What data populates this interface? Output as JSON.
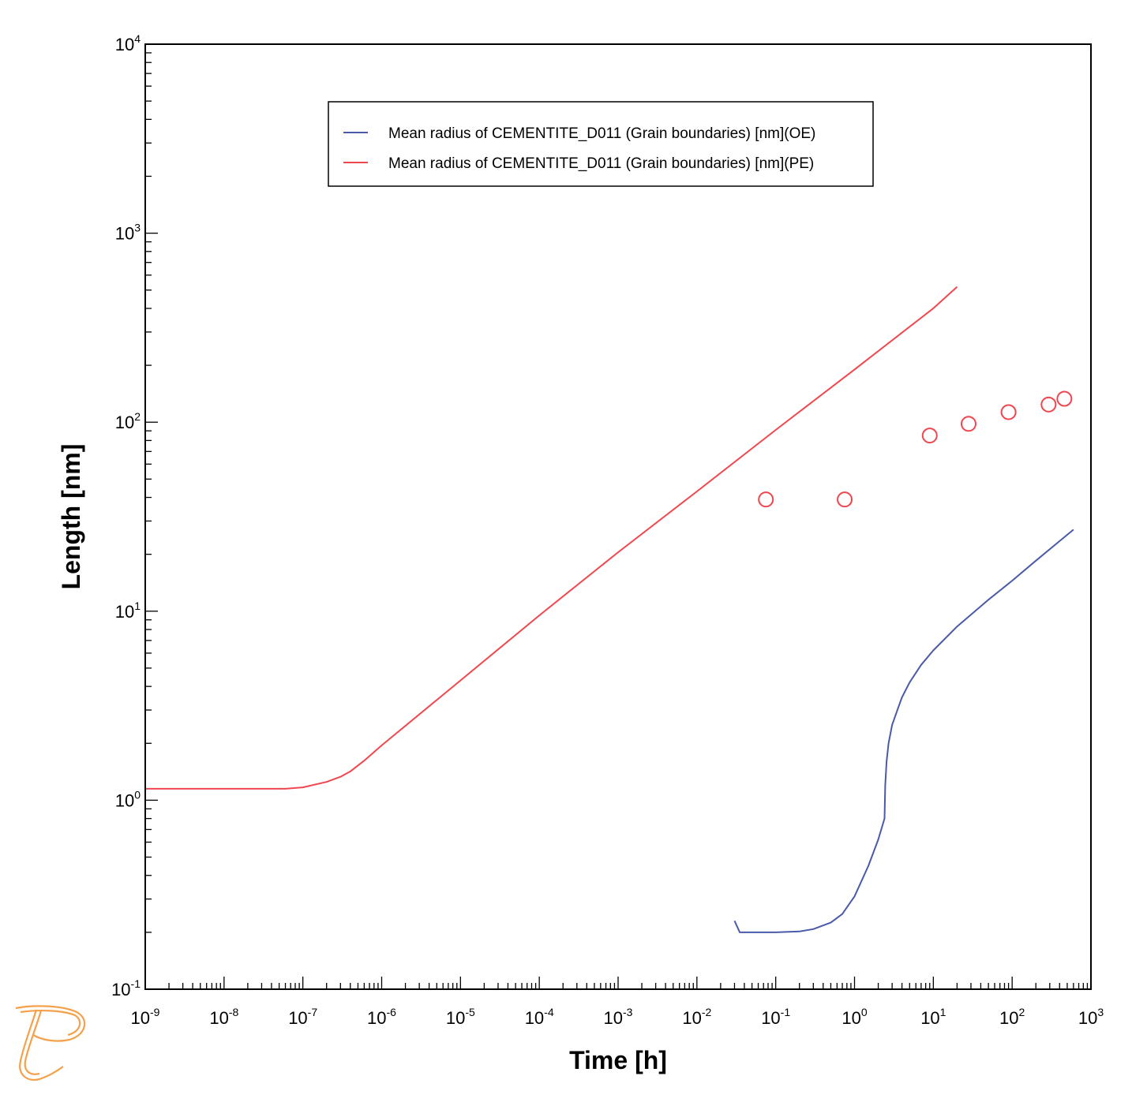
{
  "colors": {
    "oe": "#4a5aa8",
    "pe": "#f0474f",
    "logo": "#f5a04a"
  },
  "logo_icon": "thermo-calc-logo-icon",
  "chart_data": {
    "type": "line",
    "xlabel": "Time [h]",
    "ylabel": "Length [nm]",
    "xscale": "log",
    "yscale": "log",
    "xlim": [
      1e-09,
      1000
    ],
    "ylim": [
      0.1,
      10000
    ],
    "x_ticks": [
      {
        "base": "10",
        "exp": "-9"
      },
      {
        "base": "10",
        "exp": "-8"
      },
      {
        "base": "10",
        "exp": "-7"
      },
      {
        "base": "10",
        "exp": "-6"
      },
      {
        "base": "10",
        "exp": "-5"
      },
      {
        "base": "10",
        "exp": "-4"
      },
      {
        "base": "10",
        "exp": "-3"
      },
      {
        "base": "10",
        "exp": "-2"
      },
      {
        "base": "10",
        "exp": "-1"
      },
      {
        "base": "10",
        "exp": "0"
      },
      {
        "base": "10",
        "exp": "1"
      },
      {
        "base": "10",
        "exp": "2"
      },
      {
        "base": "10",
        "exp": "3"
      }
    ],
    "y_ticks": [
      {
        "base": "10",
        "exp": "-1"
      },
      {
        "base": "10",
        "exp": "0"
      },
      {
        "base": "10",
        "exp": "1"
      },
      {
        "base": "10",
        "exp": "2"
      },
      {
        "base": "10",
        "exp": "3"
      },
      {
        "base": "10",
        "exp": "4"
      }
    ],
    "legend_position": "top-center",
    "grid": false,
    "series": [
      {
        "name": "Mean radius of CEMENTITE_D011 (Grain boundaries) [nm](OE)",
        "color": "#4a5aa8",
        "kind": "line",
        "x": [
          0.03,
          0.035,
          0.05,
          0.1,
          0.2,
          0.3,
          0.5,
          0.7,
          1.0,
          1.5,
          2.0,
          2.4,
          2.45,
          2.55,
          2.7,
          3.0,
          3.5,
          4.0,
          5.0,
          7.0,
          10,
          20,
          50,
          100,
          200,
          400,
          600
        ],
        "y": [
          0.23,
          0.2,
          0.2,
          0.2,
          0.202,
          0.208,
          0.225,
          0.25,
          0.31,
          0.45,
          0.62,
          0.8,
          1.2,
          1.6,
          2.0,
          2.5,
          3.0,
          3.5,
          4.2,
          5.2,
          6.2,
          8.3,
          11.5,
          14.5,
          18.5,
          23.5,
          27
        ]
      },
      {
        "name": "Mean radius of CEMENTITE_D011 (Grain boundaries) [nm](PE)",
        "color": "#f0474f",
        "kind": "line",
        "x": [
          1e-09,
          1e-08,
          3e-08,
          6e-08,
          1e-07,
          2e-07,
          3e-07,
          4e-07,
          6e-07,
          1e-06,
          1e-05,
          0.0001,
          0.001,
          0.01,
          0.1,
          1,
          10,
          20
        ],
        "y": [
          1.15,
          1.15,
          1.15,
          1.15,
          1.17,
          1.25,
          1.33,
          1.42,
          1.62,
          1.95,
          4.3,
          9.5,
          20.5,
          43,
          91,
          190,
          400,
          520
        ]
      },
      {
        "name": "",
        "color": "#f0474f",
        "kind": "scatter",
        "x": [
          0.075,
          0.75,
          9,
          28,
          90,
          290,
          460
        ],
        "y": [
          39,
          39,
          85,
          98,
          113,
          124,
          133
        ]
      }
    ]
  }
}
